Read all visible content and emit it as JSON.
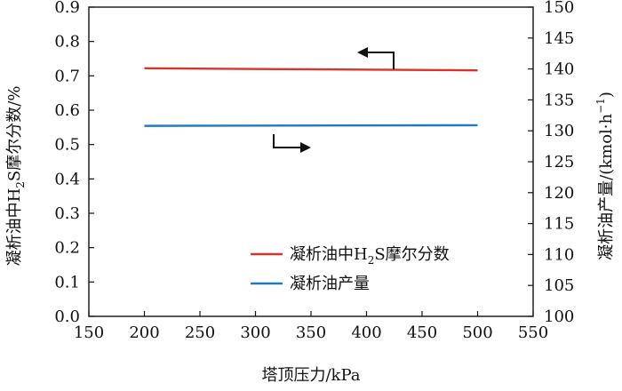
{
  "chart_data": {
    "type": "line",
    "xlabel": "塔顶压力/kPa",
    "ylabel_left_main": "凝析油中H",
    "ylabel_left_sub": "2",
    "ylabel_left_tail": "S摩尔分数/%",
    "ylabel_right_main": "凝析油产量/(kmol·h",
    "ylabel_right_sup": "−1",
    "ylabel_right_tail": ")",
    "xlim": [
      150,
      550
    ],
    "ylim_left": [
      0.0,
      0.9
    ],
    "ylim_right": [
      100,
      150
    ],
    "x_ticks": [
      "150",
      "200",
      "250",
      "300",
      "350",
      "400",
      "450",
      "500",
      "550"
    ],
    "y_left_ticks": [
      "0.0",
      "0.1",
      "0.2",
      "0.3",
      "0.4",
      "0.5",
      "0.6",
      "0.7",
      "0.8",
      "0.9"
    ],
    "y_right_ticks": [
      "100",
      "105",
      "110",
      "115",
      "120",
      "125",
      "130",
      "135",
      "140",
      "145",
      "150"
    ],
    "series": [
      {
        "name_main": "凝析油中H",
        "name_sub": "2",
        "name_tail": "S摩尔分数",
        "axis": "left",
        "color": "#d9342b",
        "x": [
          200,
          500
        ],
        "y": [
          0.722,
          0.716
        ]
      },
      {
        "name_main": "凝析油产量",
        "axis": "right",
        "color": "#1f7bbf",
        "x": [
          200,
          500
        ],
        "y": [
          130.8,
          130.9
        ]
      }
    ],
    "legend_position": "lower-right",
    "grid": false
  }
}
